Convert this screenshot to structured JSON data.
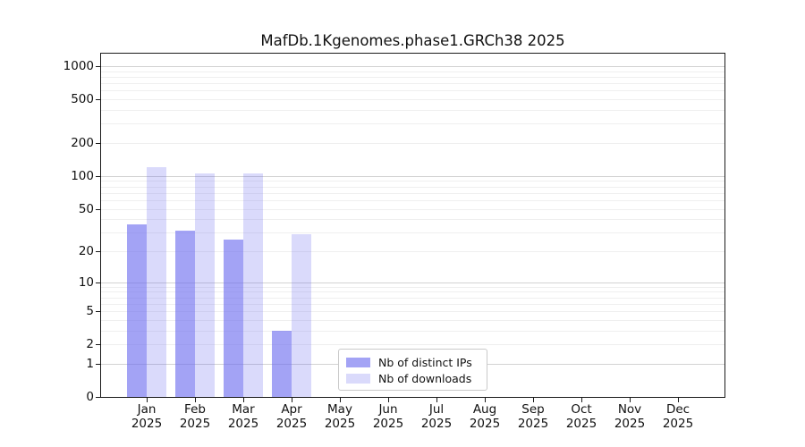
{
  "figure": {
    "background_color": "#ffffff",
    "spine_color": "#1a1a1a"
  },
  "chart_data": {
    "type": "bar",
    "title": "MafDb.1Kgenomes.phase1.GRCh38 2025",
    "categories": [
      "Jan 2025",
      "Feb 2025",
      "Mar 2025",
      "Apr 2025",
      "May 2025",
      "Jun 2025",
      "Jul 2025",
      "Aug 2025",
      "Sep 2025",
      "Oct 2025",
      "Nov 2025",
      "Dec 2025"
    ],
    "series": [
      {
        "name": "Nb of distinct IPs",
        "color": "rgba(107,107,239,0.62)",
        "values": [
          36,
          31,
          26,
          3,
          0,
          0,
          0,
          0,
          0,
          0,
          0,
          0
        ]
      },
      {
        "name": "Nb of downloads",
        "color": "rgba(107,107,239,0.25)",
        "values": [
          121,
          105,
          106,
          29,
          0,
          0,
          0,
          0,
          0,
          0,
          0,
          0
        ]
      }
    ],
    "y_axis": {
      "scale": "log10(value+1)",
      "tick_values": [
        0,
        1,
        2,
        5,
        10,
        20,
        50,
        100,
        200,
        500,
        1000
      ],
      "ylim": [
        0,
        1300
      ],
      "grid": "horizontal",
      "major_grid_values": [
        1,
        10,
        100,
        1000
      ],
      "major_grid_color": "#d2d2d2",
      "minor_grid_color": "#efefef"
    },
    "x_axis": {
      "tick_label_line2": "2025"
    },
    "legend": {
      "location": "lower center",
      "entries": [
        "Nb of distinct IPs",
        "Nb of downloads"
      ]
    }
  }
}
